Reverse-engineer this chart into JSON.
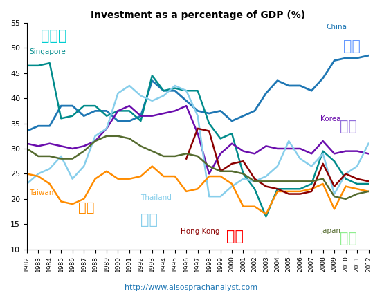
{
  "title": "Investment as a percentage of GDP (%)",
  "years": [
    1982,
    1983,
    1984,
    1985,
    1986,
    1987,
    1988,
    1989,
    1990,
    1991,
    1992,
    1993,
    1994,
    1995,
    1996,
    1997,
    1998,
    1999,
    2000,
    2001,
    2002,
    2003,
    2004,
    2005,
    2006,
    2007,
    2008,
    2009,
    2010,
    2011,
    2012
  ],
  "China": [
    33.5,
    34.5,
    34.5,
    38.5,
    38.5,
    36.5,
    37.5,
    37.5,
    35.5,
    35.5,
    36.5,
    43.5,
    41.5,
    41.5,
    39.5,
    37.5,
    37.0,
    37.5,
    35.5,
    36.5,
    37.5,
    41.0,
    43.5,
    42.5,
    42.5,
    41.5,
    44.0,
    47.5,
    48.0,
    48.0,
    48.5
  ],
  "Singapore": [
    46.5,
    46.5,
    47.0,
    36.0,
    36.5,
    38.5,
    38.5,
    36.5,
    37.5,
    37.5,
    35.5,
    44.5,
    41.5,
    42.0,
    41.5,
    41.5,
    35.0,
    32.0,
    33.0,
    25.0,
    22.0,
    16.5,
    22.0,
    22.0,
    22.0,
    23.0,
    29.5,
    27.5,
    24.0,
    23.0,
    23.0
  ],
  "Korea": [
    31.0,
    30.5,
    31.0,
    30.5,
    30.0,
    30.5,
    31.5,
    34.0,
    37.5,
    38.5,
    36.5,
    36.5,
    37.0,
    37.5,
    38.5,
    33.0,
    25.0,
    29.0,
    31.0,
    29.5,
    29.0,
    30.5,
    30.0,
    30.0,
    30.0,
    29.0,
    31.5,
    29.0,
    29.5,
    29.5,
    29.0
  ],
  "Thailand": [
    23.0,
    25.0,
    26.0,
    28.5,
    24.0,
    26.5,
    32.5,
    34.0,
    41.0,
    42.5,
    40.5,
    39.5,
    40.5,
    42.5,
    41.5,
    36.5,
    20.5,
    20.5,
    22.5,
    24.0,
    23.5,
    24.5,
    26.5,
    31.5,
    28.0,
    26.5,
    29.0,
    21.0,
    25.0,
    26.5,
    31.0
  ],
  "Taiwan": [
    25.0,
    24.5,
    23.0,
    19.5,
    19.0,
    20.0,
    24.0,
    25.5,
    24.0,
    24.0,
    24.5,
    26.5,
    24.5,
    24.5,
    21.5,
    22.0,
    24.5,
    24.5,
    23.0,
    18.5,
    18.5,
    17.0,
    21.5,
    21.5,
    21.5,
    22.0,
    23.0,
    18.0,
    22.5,
    22.0,
    21.5
  ],
  "HongKong": [
    null,
    null,
    null,
    null,
    null,
    null,
    null,
    null,
    null,
    null,
    null,
    null,
    null,
    null,
    28.0,
    34.0,
    33.5,
    25.5,
    27.0,
    27.5,
    24.0,
    22.5,
    22.0,
    21.0,
    21.0,
    21.5,
    27.0,
    22.5,
    25.0,
    24.0,
    23.5
  ],
  "Japan": [
    30.0,
    28.5,
    28.5,
    28.0,
    28.0,
    29.5,
    31.5,
    32.5,
    32.5,
    32.0,
    30.5,
    29.5,
    28.5,
    28.5,
    29.0,
    28.5,
    26.5,
    25.5,
    25.5,
    25.0,
    23.5,
    23.5,
    23.5,
    23.5,
    23.5,
    23.5,
    24.0,
    20.5,
    20.0,
    21.0,
    21.5
  ],
  "china_color": "#1F77B4",
  "singapore_color": "#008B8B",
  "korea_color": "#6A0DAD",
  "thailand_color": "#87CEEB",
  "taiwan_color": "#FF8C00",
  "hongkong_color": "#8B0000",
  "japan_color": "#556B2F",
  "url": "http://www.alsosprachanalyst.com",
  "ylim": [
    10,
    55
  ],
  "yticks": [
    10,
    15,
    20,
    25,
    30,
    35,
    40,
    45,
    50,
    55
  ]
}
